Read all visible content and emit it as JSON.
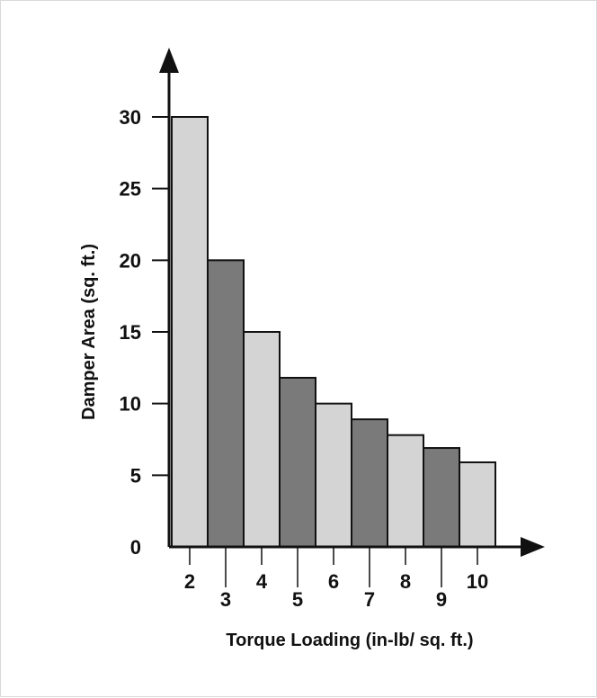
{
  "chart_data": {
    "type": "bar",
    "title": "",
    "xlabel": "Torque Loading (in-lb/ sq. ft.)",
    "ylabel": "Damper Area (sq. ft.)",
    "categories": [
      "2",
      "3",
      "4",
      "5",
      "6",
      "7",
      "8",
      "9",
      "10"
    ],
    "values": [
      30,
      20,
      15,
      11.8,
      10,
      8.9,
      7.8,
      6.9,
      5.9
    ],
    "ylim": [
      0,
      30
    ],
    "yticks": [
      "0",
      "5",
      "10",
      "15",
      "20",
      "25",
      "30"
    ],
    "grid": false,
    "legend": "none",
    "colors": {
      "light_bar": "#d4d4d4",
      "dark_bar": "#7a7a7a",
      "outline": "#111111"
    }
  }
}
